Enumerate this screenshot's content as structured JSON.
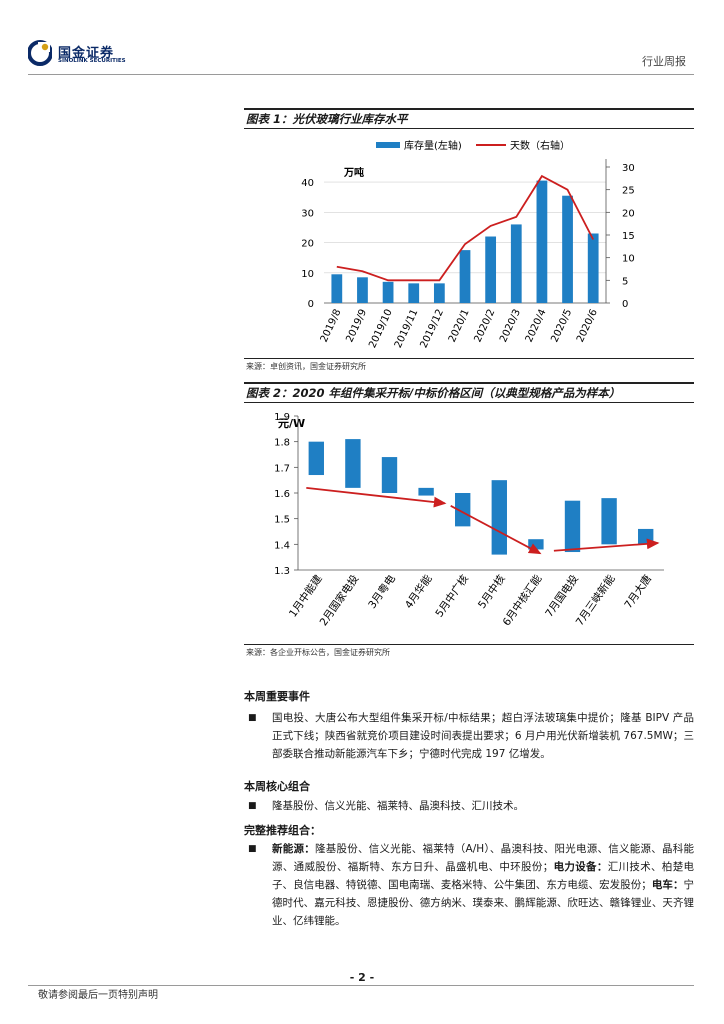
{
  "header": {
    "logo_cn": "国金证券",
    "logo_en": "SINOLINK SECURITIES",
    "report_type": "行业周报"
  },
  "figure1": {
    "title": "图表 1：光伏玻璃行业库存水平",
    "source": "来源：卓创资讯，国金证券研究所"
  },
  "figure2": {
    "title": "图表 2：2020 年组件集采开标/中标价格区间（以典型规格产品为样本）",
    "source": "来源：各企业开标公告，国金证券研究所"
  },
  "chart_data": [
    {
      "type": "bar",
      "categories": [
        "2019/8",
        "2019/9",
        "2019/10",
        "2019/11",
        "2019/12",
        "2020/1",
        "2020/2",
        "2020/3",
        "2020/4",
        "2020/5",
        "2020/6"
      ],
      "series": [
        {
          "name": "库存量(左轴)",
          "type": "bar",
          "axis": "left",
          "values": [
            9.5,
            8.5,
            7,
            6.5,
            6.5,
            17.5,
            22,
            26,
            40.5,
            35.5,
            23
          ],
          "color": "#1f7fc4"
        },
        {
          "name": "天数（右轴）",
          "type": "line",
          "axis": "right",
          "values": [
            8,
            7,
            5,
            5,
            5,
            13,
            17,
            19,
            28,
            25,
            14
          ],
          "color": "#cc1f1f"
        }
      ],
      "ylabel": "万吨",
      "ylim": [
        0,
        45
      ],
      "yticks": [
        0,
        10,
        20,
        30,
        40
      ],
      "y2lim": [
        0,
        30
      ],
      "y2ticks": [
        0,
        5,
        10,
        15,
        20,
        25,
        30
      ],
      "legend": "top"
    },
    {
      "type": "bar",
      "subtype": "floating-range",
      "categories": [
        "1月中能建",
        "2月国家电投",
        "3月粤电",
        "4月华能",
        "5月中广核",
        "5月中核",
        "6月中核汇能",
        "7月国电投",
        "7月三峡新能",
        "7月大唐"
      ],
      "series": [
        {
          "name": "价格区间",
          "lows": [
            1.67,
            1.62,
            1.6,
            1.59,
            1.47,
            1.36,
            1.38,
            1.37,
            1.4,
            1.4
          ],
          "highs": [
            1.8,
            1.81,
            1.74,
            1.62,
            1.6,
            1.65,
            1.42,
            1.57,
            1.58,
            1.46
          ],
          "color": "#1f7fc4"
        }
      ],
      "ylabel": "元/W",
      "ylim": [
        1.3,
        1.9
      ],
      "yticks": [
        1.3,
        1.4,
        1.5,
        1.6,
        1.7,
        1.8,
        1.9
      ],
      "trend_arrows_color": "#cc1f1f"
    }
  ],
  "events": {
    "heading": "本周重要事件",
    "text": "国电投、大唐公布大型组件集采开标/中标结果；超白浮法玻璃集中提价；隆基 BIPV 产品正式下线；陕西省就竞价项目建设时间表提出要求；6 月户用光伏新增装机 767.5MW；三部委联合推动新能源汽车下乡；宁德时代完成 197 亿增发。"
  },
  "core": {
    "heading": "本周核心组合",
    "text": "隆基股份、信义光能、福莱特、晶澳科技、汇川技术。"
  },
  "full": {
    "heading": "完整推荐组合：",
    "label_ne": "新能源：",
    "text_ne": "隆基股份、信义光能、福莱特（A/H）、晶澳科技、阳光电源、信义能源、晶科能源、通威股份、福斯特、东方日升、晶盛机电、中环股份；",
    "label_power": "电力设备：",
    "text_power": "汇川技术、柏楚电子、良信电器、特锐德、国电南瑞、麦格米特、公牛集团、东方电缆、宏发股份；",
    "label_ev": "电车：",
    "text_ev": "宁德时代、嘉元科技、恩捷股份、德方纳米、璞泰来、鹏辉能源、欣旺达、赣锋锂业、天齐锂业、亿纬锂能。"
  },
  "footer": {
    "page": "- 2 -",
    "disclaimer": "敬请参阅最后一页特别声明"
  }
}
